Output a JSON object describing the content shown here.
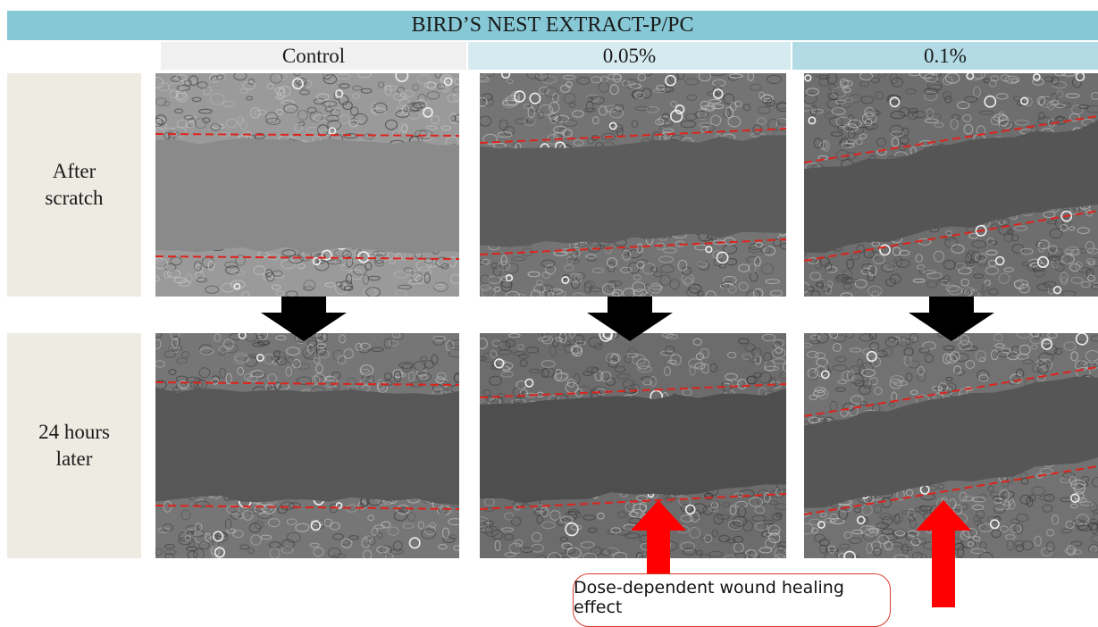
{
  "header": {
    "title": "BIRD’S NEST EXTRACT-P/PC"
  },
  "columns": [
    {
      "label": "Control",
      "bg": "#f0f0f0"
    },
    {
      "label": "0.05%",
      "bg": "#d6ebf0"
    },
    {
      "label": "0.1%",
      "bg": "#b3dbe5"
    }
  ],
  "rows": [
    {
      "label_line1": "After",
      "label_line2": "scratch"
    },
    {
      "label_line1": "24 hours",
      "label_line2": "later"
    }
  ],
  "annotation": {
    "text": "Dose-dependent wound healing effect"
  },
  "colors": {
    "title_bar": "#86c8d6",
    "row_label_bg": "#eeebe2",
    "wound_edge": "#e0231c",
    "progress_arrow": "#ff0000",
    "step_arrow": "#000000"
  }
}
